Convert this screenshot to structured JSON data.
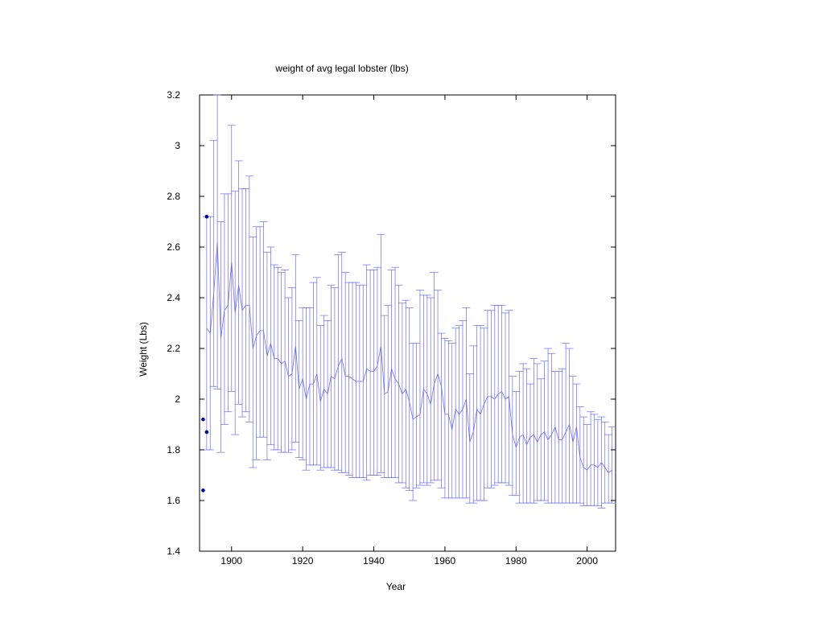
{
  "chart_data": {
    "type": "line",
    "title": "weight of avg legal lobster (lbs)",
    "xlabel": "Year",
    "ylabel": "Weight (Lbs)",
    "xlim": [
      1891,
      2008
    ],
    "ylim": [
      1.4,
      3.2
    ],
    "xticks": [
      1900,
      1920,
      1940,
      1960,
      1980,
      2000
    ],
    "xtick_labels": [
      "1900",
      "1920",
      "1940",
      "1960",
      "1980",
      "2000"
    ],
    "yticks": [
      1.4,
      1.6,
      1.8,
      2.0,
      2.2,
      2.4,
      2.6,
      2.8,
      3.0,
      3.2
    ],
    "ytick_labels": [
      "1.4",
      "1.6",
      "1.8",
      "2",
      "2.2",
      "2.4",
      "2.6",
      "2.8",
      "3",
      "3.2"
    ],
    "grid": false,
    "colors": {
      "series": "#6b6bff",
      "points": "#0000b0",
      "axis": "#000000"
    },
    "series": [
      {
        "type": "line-errorbar",
        "x": [
          1893,
          1894,
          1895,
          1896,
          1897,
          1898,
          1899,
          1900,
          1901,
          1902,
          1903,
          1904,
          1905,
          1906,
          1907,
          1908,
          1909,
          1910,
          1911,
          1912,
          1913,
          1914,
          1915,
          1916,
          1917,
          1918,
          1919,
          1920,
          1921,
          1922,
          1923,
          1924,
          1925,
          1926,
          1927,
          1928,
          1929,
          1930,
          1931,
          1932,
          1933,
          1934,
          1935,
          1936,
          1937,
          1938,
          1939,
          1940,
          1941,
          1942,
          1943,
          1944,
          1945,
          1946,
          1947,
          1948,
          1949,
          1950,
          1951,
          1952,
          1953,
          1954,
          1955,
          1956,
          1957,
          1958,
          1959,
          1960,
          1961,
          1962,
          1963,
          1964,
          1965,
          1966,
          1967,
          1968,
          1969,
          1970,
          1971,
          1972,
          1973,
          1974,
          1975,
          1976,
          1977,
          1978,
          1979,
          1980,
          1981,
          1982,
          1983,
          1984,
          1985,
          1986,
          1987,
          1988,
          1989,
          1990,
          1991,
          1992,
          1993,
          1994,
          1995,
          1996,
          1997,
          1998,
          1999,
          2000,
          2001,
          2002,
          2003,
          2004,
          2005,
          2006,
          2007
        ],
        "y": [
          2.28,
          2.26,
          2.42,
          2.62,
          2.24,
          2.35,
          2.37,
          2.54,
          2.34,
          2.45,
          2.35,
          2.37,
          2.37,
          2.2,
          2.25,
          2.27,
          2.27,
          2.17,
          2.22,
          2.16,
          2.16,
          2.14,
          2.15,
          2.09,
          2.1,
          2.21,
          2.04,
          2.08,
          2.0,
          2.06,
          2.06,
          2.1,
          1.99,
          2.04,
          2.02,
          2.09,
          2.08,
          2.13,
          2.16,
          2.09,
          2.09,
          2.08,
          2.07,
          2.07,
          2.07,
          2.12,
          2.11,
          2.11,
          2.13,
          2.21,
          2.02,
          2.03,
          2.12,
          2.08,
          2.06,
          2.02,
          2.04,
          1.99,
          1.92,
          1.93,
          1.94,
          2.04,
          2.02,
          1.98,
          2.06,
          2.1,
          2.05,
          1.94,
          1.94,
          1.88,
          1.96,
          1.94,
          1.96,
          2.0,
          1.83,
          1.87,
          1.96,
          1.94,
          1.98,
          2.01,
          2.01,
          2.0,
          2.02,
          2.03,
          2.0,
          2.01,
          1.86,
          1.81,
          1.85,
          1.86,
          1.82,
          1.85,
          1.86,
          1.83,
          1.86,
          1.87,
          1.84,
          1.86,
          1.89,
          1.84,
          1.84,
          1.87,
          1.9,
          1.83,
          1.89,
          1.77,
          1.73,
          1.72,
          1.74,
          1.74,
          1.73,
          1.75,
          1.73,
          1.71,
          1.72
        ],
        "ylow": [
          1.8,
          1.8,
          2.05,
          2.04,
          1.79,
          1.9,
          1.95,
          2.03,
          1.86,
          1.98,
          1.93,
          1.95,
          1.91,
          1.73,
          1.76,
          1.85,
          1.85,
          1.76,
          1.82,
          1.8,
          1.8,
          1.79,
          1.79,
          1.79,
          1.8,
          1.83,
          1.77,
          1.76,
          1.72,
          1.74,
          1.74,
          1.74,
          1.72,
          1.73,
          1.73,
          1.73,
          1.72,
          1.72,
          1.71,
          1.71,
          1.7,
          1.69,
          1.69,
          1.69,
          1.69,
          1.68,
          1.7,
          1.7,
          1.7,
          1.71,
          1.69,
          1.69,
          1.69,
          1.69,
          1.67,
          1.67,
          1.65,
          1.64,
          1.6,
          1.65,
          1.66,
          1.67,
          1.66,
          1.67,
          1.68,
          1.68,
          1.65,
          1.61,
          1.61,
          1.61,
          1.61,
          1.61,
          1.61,
          1.61,
          1.59,
          1.59,
          1.6,
          1.6,
          1.6,
          1.65,
          1.65,
          1.66,
          1.67,
          1.67,
          1.67,
          1.66,
          1.62,
          1.62,
          1.59,
          1.59,
          1.59,
          1.59,
          1.59,
          1.6,
          1.6,
          1.6,
          1.59,
          1.59,
          1.59,
          1.59,
          1.59,
          1.59,
          1.59,
          1.59,
          1.59,
          1.59,
          1.58,
          1.58,
          1.58,
          1.58,
          1.58,
          1.57,
          1.59,
          1.59,
          1.59
        ],
        "yhigh": [
          2.72,
          2.72,
          3.02,
          3.2,
          2.7,
          2.81,
          2.81,
          3.08,
          2.82,
          2.94,
          2.83,
          2.83,
          2.88,
          2.64,
          2.68,
          2.68,
          2.7,
          2.58,
          2.6,
          2.53,
          2.52,
          2.5,
          2.51,
          2.4,
          2.44,
          2.57,
          2.31,
          2.36,
          2.36,
          2.36,
          2.46,
          2.48,
          2.29,
          2.33,
          2.31,
          2.45,
          2.44,
          2.57,
          2.58,
          2.5,
          2.46,
          2.46,
          2.46,
          2.45,
          2.45,
          2.53,
          2.51,
          2.51,
          2.52,
          2.65,
          2.33,
          2.37,
          2.51,
          2.52,
          2.45,
          2.38,
          2.39,
          2.36,
          2.22,
          2.22,
          2.43,
          2.41,
          2.41,
          2.4,
          2.5,
          2.43,
          2.26,
          2.24,
          2.23,
          2.22,
          2.28,
          2.29,
          2.31,
          2.36,
          2.1,
          2.21,
          2.29,
          2.29,
          2.28,
          2.35,
          2.35,
          2.37,
          2.37,
          2.37,
          2.34,
          2.35,
          2.09,
          2.03,
          2.11,
          2.14,
          2.12,
          2.06,
          2.16,
          2.14,
          2.08,
          2.15,
          2.2,
          2.18,
          2.11,
          2.11,
          2.12,
          2.22,
          2.2,
          2.09,
          2.06,
          1.97,
          1.93,
          1.9,
          1.95,
          1.94,
          1.92,
          1.93,
          1.91,
          1.86,
          1.89
        ]
      },
      {
        "type": "scatter",
        "x": [
          1892,
          1892,
          1893,
          1893
        ],
        "y": [
          1.64,
          1.92,
          1.87,
          2.72
        ]
      }
    ]
  }
}
